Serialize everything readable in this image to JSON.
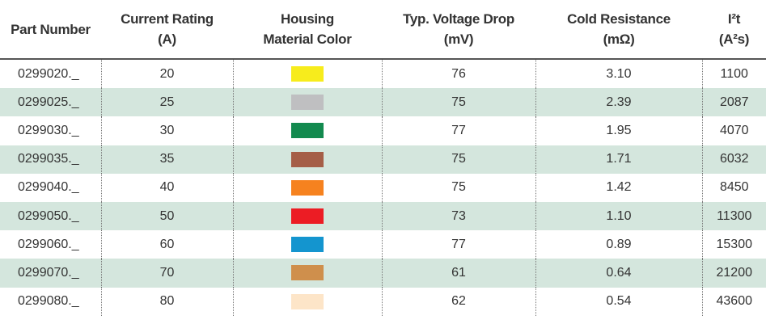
{
  "table": {
    "header": [
      [
        "Part Number"
      ],
      [
        "Current Rating",
        "(A)"
      ],
      [
        "Housing",
        "Material Color"
      ],
      [
        "Typ. Voltage Drop",
        "(mV)"
      ],
      [
        "Cold Resistance",
        "(mΩ)"
      ],
      [
        "I²t",
        "(A²s)"
      ]
    ],
    "rows": [
      {
        "part": "0299020._",
        "rating": "20",
        "color": "#f7ec1c",
        "drop": "76",
        "resistance": "3.10",
        "i2t": "1100"
      },
      {
        "part": "0299025._",
        "rating": "25",
        "color": "#bfbfc1",
        "drop": "75",
        "resistance": "2.39",
        "i2t": "2087"
      },
      {
        "part": "0299030._",
        "rating": "30",
        "color": "#138a4f",
        "drop": "77",
        "resistance": "1.95",
        "i2t": "4070"
      },
      {
        "part": "0299035._",
        "rating": "35",
        "color": "#a55e47",
        "drop": "75",
        "resistance": "1.71",
        "i2t": "6032"
      },
      {
        "part": "0299040._",
        "rating": "40",
        "color": "#f6821f",
        "drop": "75",
        "resistance": "1.42",
        "i2t": "8450"
      },
      {
        "part": "0299050._",
        "rating": "50",
        "color": "#ec1c24",
        "drop": "73",
        "resistance": "1.10",
        "i2t": "11300"
      },
      {
        "part": "0299060._",
        "rating": "60",
        "color": "#1495cf",
        "drop": "77",
        "resistance": "0.89",
        "i2t": "15300"
      },
      {
        "part": "0299070._",
        "rating": "70",
        "color": "#cf8f4c",
        "drop": "61",
        "resistance": "0.64",
        "i2t": "21200"
      },
      {
        "part": "0299080._",
        "rating": "80",
        "color": "#fde5c8",
        "drop": "62",
        "resistance": "0.54",
        "i2t": "43600"
      }
    ]
  }
}
